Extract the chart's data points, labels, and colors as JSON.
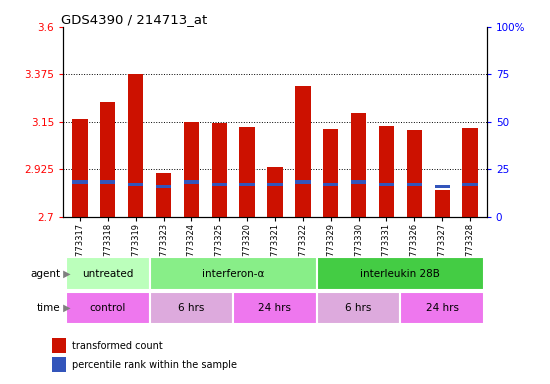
{
  "title": "GDS4390 / 214713_at",
  "samples": [
    "GSM773317",
    "GSM773318",
    "GSM773319",
    "GSM773323",
    "GSM773324",
    "GSM773325",
    "GSM773320",
    "GSM773321",
    "GSM773322",
    "GSM773329",
    "GSM773330",
    "GSM773331",
    "GSM773326",
    "GSM773327",
    "GSM773328"
  ],
  "bar_tops": [
    3.165,
    3.245,
    3.375,
    2.91,
    3.15,
    3.145,
    3.125,
    2.935,
    3.32,
    3.115,
    3.19,
    3.13,
    3.11,
    2.83,
    3.12
  ],
  "blue_positions": [
    2.855,
    2.855,
    2.845,
    2.835,
    2.855,
    2.845,
    2.845,
    2.845,
    2.855,
    2.845,
    2.855,
    2.845,
    2.845,
    2.835,
    2.845
  ],
  "ylim_left": [
    2.7,
    3.6
  ],
  "ylim_right": [
    0,
    100
  ],
  "yticks_left": [
    2.7,
    2.925,
    3.15,
    3.375,
    3.6
  ],
  "ytick_labels_left": [
    "2.7",
    "2.925",
    "3.15",
    "3.375",
    "3.6"
  ],
  "yticks_right": [
    0,
    25,
    50,
    75,
    100
  ],
  "ytick_labels_right": [
    "0",
    "25",
    "50",
    "75",
    "100%"
  ],
  "hlines": [
    2.925,
    3.15,
    3.375
  ],
  "bar_color": "#cc1100",
  "blue_color": "#3355bb",
  "bar_width": 0.55,
  "agent_groups": [
    {
      "label": "untreated",
      "start": 0,
      "end": 3,
      "color": "#bbffbb"
    },
    {
      "label": "interferon-α",
      "start": 3,
      "end": 9,
      "color": "#88ee88"
    },
    {
      "label": "interleukin 28B",
      "start": 9,
      "end": 15,
      "color": "#44cc44"
    }
  ],
  "time_groups": [
    {
      "label": "control",
      "start": 0,
      "end": 3,
      "color": "#ee77ee"
    },
    {
      "label": "6 hrs",
      "start": 3,
      "end": 6,
      "color": "#ddaadd"
    },
    {
      "label": "24 hrs",
      "start": 6,
      "end": 9,
      "color": "#ee77ee"
    },
    {
      "label": "6 hrs",
      "start": 9,
      "end": 12,
      "color": "#ddaadd"
    },
    {
      "label": "24 hrs",
      "start": 12,
      "end": 15,
      "color": "#ee77ee"
    }
  ],
  "legend_red": "transformed count",
  "legend_blue": "percentile rank within the sample",
  "background_color": "#ffffff"
}
